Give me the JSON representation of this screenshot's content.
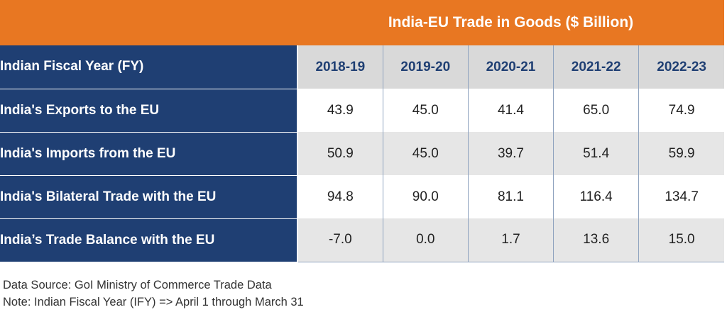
{
  "chart_data": {
    "type": "table",
    "title": "India-EU Trade in Goods ($ Billion)",
    "header_label": "Indian Fiscal Year (FY)",
    "columns": [
      "2018-19",
      "2019-20",
      "2020-21",
      "2021-22",
      "2022-23"
    ],
    "rows": [
      {
        "label": "India's Exports to the EU",
        "values": [
          "43.9",
          "45.0",
          "41.4",
          "65.0",
          "74.9"
        ]
      },
      {
        "label": "India's Imports from the EU",
        "values": [
          "50.9",
          "45.0",
          "39.7",
          "51.4",
          "59.9"
        ]
      },
      {
        "label": "India's Bilateral Trade with the EU",
        "values": [
          "94.8",
          "90.0",
          "81.1",
          "116.4",
          "134.7"
        ]
      },
      {
        "label": "India’s Trade Balance with the EU",
        "values": [
          "-7.0",
          "0.0",
          "1.7",
          "13.6",
          "15.0"
        ]
      }
    ],
    "colors": {
      "banner": "#e87722",
      "row_header": "#1f3f73",
      "year_header_bg": "#d9d9d9"
    }
  },
  "footer": {
    "source": "Data Source: GoI Ministry of Commerce Trade Data",
    "note": "Note: Indian Fiscal Year (IFY) => April 1 through March 31"
  }
}
